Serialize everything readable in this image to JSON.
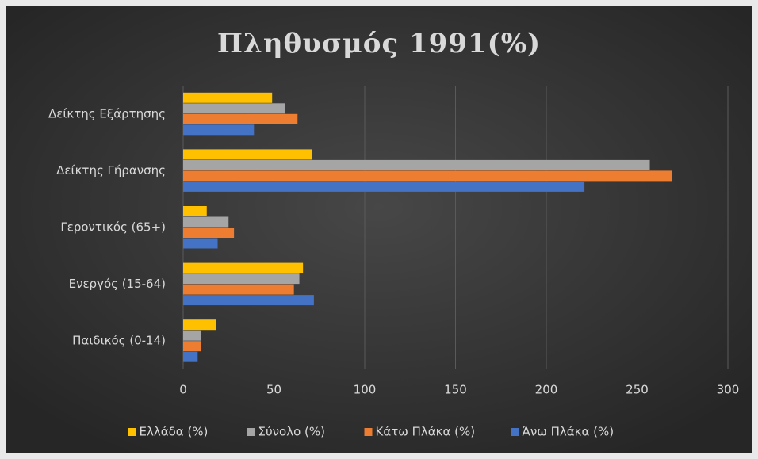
{
  "chart_data": {
    "type": "hbar",
    "title": "Πληθυσμός  1991(%)",
    "categories": [
      "Δείκτης Εξάρτησης",
      "Δείκτης Γήρανσης",
      "Γεροντικός (65+)",
      "Ενεργός (15-64)",
      "Παιδικός (0-14)"
    ],
    "series": [
      {
        "name": "Ελλάδα (%)",
        "color": "#ffc000",
        "values": [
          49,
          71,
          13,
          66,
          18
        ]
      },
      {
        "name": "Σύνολο (%)",
        "color": "#a5a5a5",
        "values": [
          56,
          257,
          25,
          64,
          10
        ]
      },
      {
        "name": "Κάτω Πλάκα (%)",
        "color": "#ed7d31",
        "values": [
          63,
          269,
          28,
          61,
          10
        ]
      },
      {
        "name": "Άνω Πλάκα (%)",
        "color": "#4472c4",
        "values": [
          39,
          221,
          19,
          72,
          8
        ]
      }
    ],
    "xlim": [
      0,
      300
    ],
    "xticks": [
      0,
      50,
      100,
      150,
      200,
      250,
      300
    ],
    "grid": true,
    "legend": "bottom"
  }
}
